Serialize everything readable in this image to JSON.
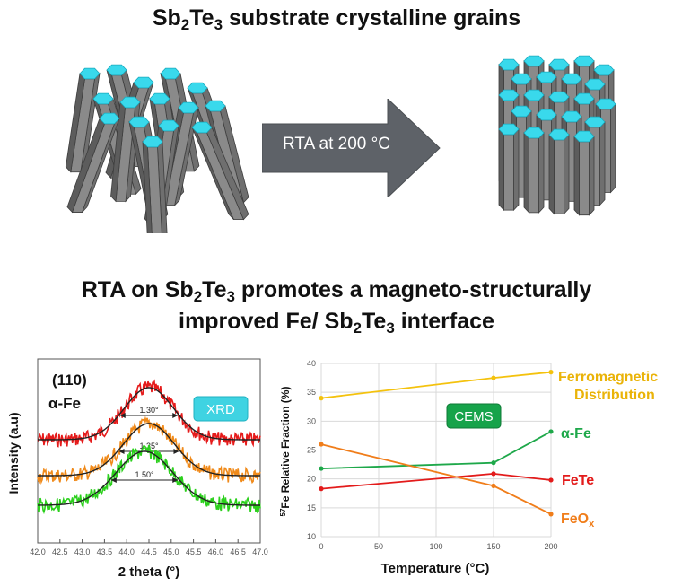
{
  "title_top": {
    "pre": "Sb",
    "sub1": "2",
    "mid": "Te",
    "sub2": "3",
    "post": " substrate crystalline grains"
  },
  "arrow_label": "RTA at 200 °C",
  "title_bottom": {
    "line1_pre": "RTA on Sb",
    "line1_sub1": "2",
    "line1_mid": "Te",
    "line1_sub2": "3",
    "line1_post": " promotes a magneto-structurally",
    "line2_pre": "improved Fe/ Sb",
    "line2_sub1": "2",
    "line2_mid": "Te",
    "line2_sub2": "3",
    "line2_post": " interface"
  },
  "colors": {
    "hex_top": "#39d9ec",
    "column": "#7a7a7a",
    "arrow": "#5e6268"
  },
  "xrd": {
    "badge": "XRD",
    "peak_label": "(110)",
    "phase_label": "α-Fe",
    "xlabel": "2 theta (°)",
    "ylabel": "Intensity (a.u)",
    "fwhm_labels": [
      "1.30°",
      "1.35°",
      "1.50°"
    ],
    "xticks": [
      "42.0",
      "42.5",
      "43.0",
      "43.5",
      "44.0",
      "44.5",
      "45.0",
      "45.5",
      "46.0",
      "46.5",
      "47.0"
    ]
  },
  "cems": {
    "badge": "CEMS",
    "xlabel": "Temperature (°C)",
    "ylabel_sup": "57",
    "ylabel_rest": "Fe Relative Fraction (%)",
    "yticks": [
      "10",
      "15",
      "20",
      "25",
      "30",
      "35",
      "40"
    ],
    "xticks": [
      "0",
      "50",
      "100",
      "150",
      "200"
    ],
    "series_labels": {
      "ferro_line1": "Ferromagnetic",
      "ferro_line2": "Distribution",
      "alpha": "α-Fe",
      "fete": "FeTe",
      "feox_pre": "FeO",
      "feox_sub": "x"
    }
  },
  "chart_data": [
    {
      "type": "line",
      "x": [
        0,
        150,
        200
      ],
      "xlabel": "Temperature (°C)",
      "xlim": [
        0,
        200
      ],
      "ylim": [
        10,
        40
      ],
      "series": [
        {
          "name": "Ferromagnetic Distribution",
          "values": [
            34.0,
            37.5,
            38.5
          ],
          "color": "#f4c20d"
        },
        {
          "name": "α-Fe",
          "values": [
            21.8,
            22.8,
            28.2
          ],
          "color": "#1ea84a"
        },
        {
          "name": "FeTe",
          "values": [
            18.3,
            20.9,
            19.8
          ],
          "color": "#e31b1b"
        },
        {
          "name": "FeOx",
          "values": [
            26.0,
            18.8,
            13.9
          ],
          "color": "#f07d1a"
        }
      ]
    },
    {
      "type": "line",
      "xlabel": "2 theta (°)",
      "ylabel": "Intensity (a.u)",
      "xlim": [
        42.0,
        47.0
      ],
      "series": [
        {
          "name": "1.30°",
          "fwhm": 1.3,
          "center": 44.5,
          "color": "#e51b1b"
        },
        {
          "name": "1.35°",
          "fwhm": 1.35,
          "center": 44.5,
          "color": "#f08a1a"
        },
        {
          "name": "1.50°",
          "fwhm": 1.5,
          "center": 44.4,
          "color": "#2bd01c"
        }
      ]
    }
  ]
}
